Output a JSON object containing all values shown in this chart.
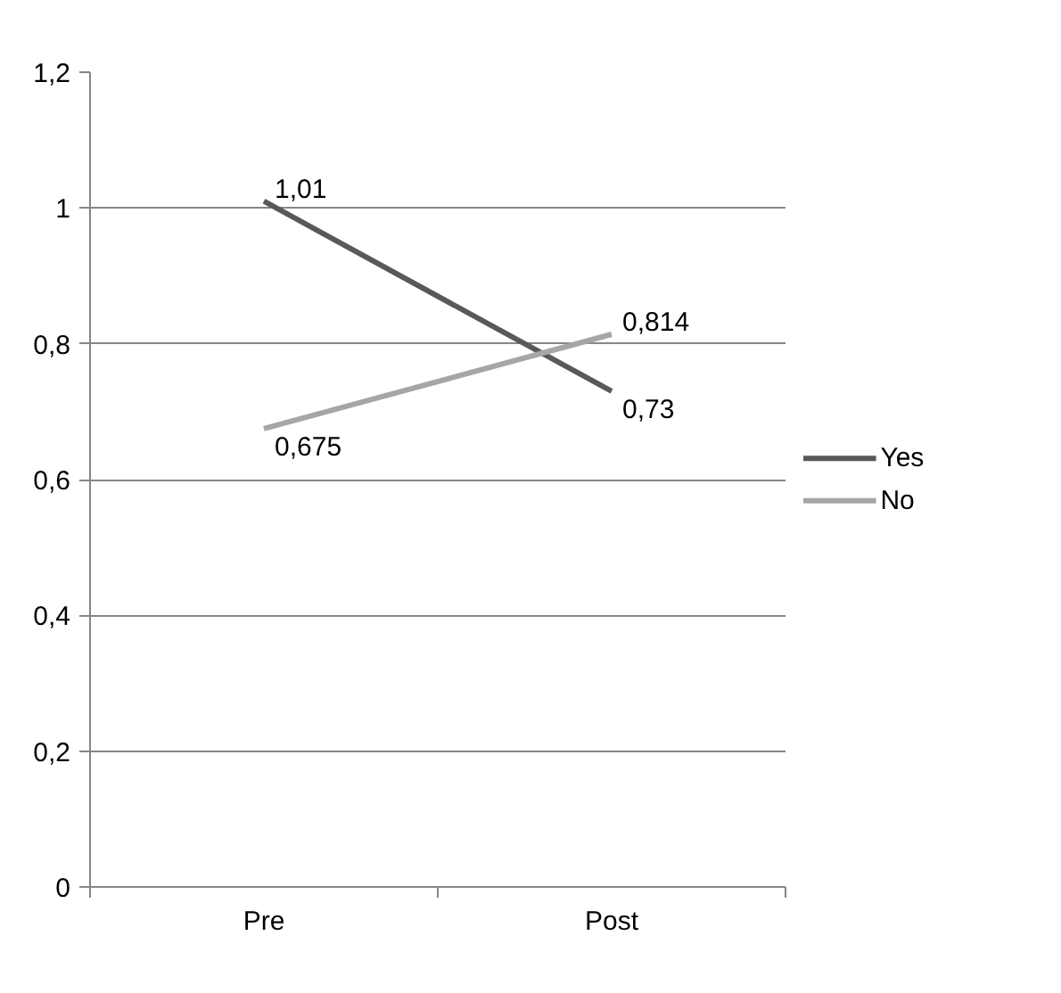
{
  "chart_data": {
    "type": "line",
    "categories": [
      "Pre",
      "Post"
    ],
    "series": [
      {
        "name": "Yes",
        "color": "#595959",
        "values": [
          1.01,
          0.73
        ],
        "value_labels": [
          "1,01",
          "0,73"
        ]
      },
      {
        "name": "No",
        "color": "#a6a6a6",
        "values": [
          0.675,
          0.814
        ],
        "value_labels": [
          "0,675",
          "0,814"
        ]
      }
    ],
    "ylim": [
      0,
      1.2
    ],
    "yticks": [
      {
        "value": 0,
        "label": "0"
      },
      {
        "value": 0.2,
        "label": "0,2"
      },
      {
        "value": 0.4,
        "label": "0,4"
      },
      {
        "value": 0.6,
        "label": "0,6"
      },
      {
        "value": 0.8,
        "label": "0,8"
      },
      {
        "value": 1,
        "label": "1"
      },
      {
        "value": 1.2,
        "label": "1,2"
      }
    ],
    "grid": "y",
    "legend": "right",
    "marker": "none",
    "line_style": "solid"
  }
}
